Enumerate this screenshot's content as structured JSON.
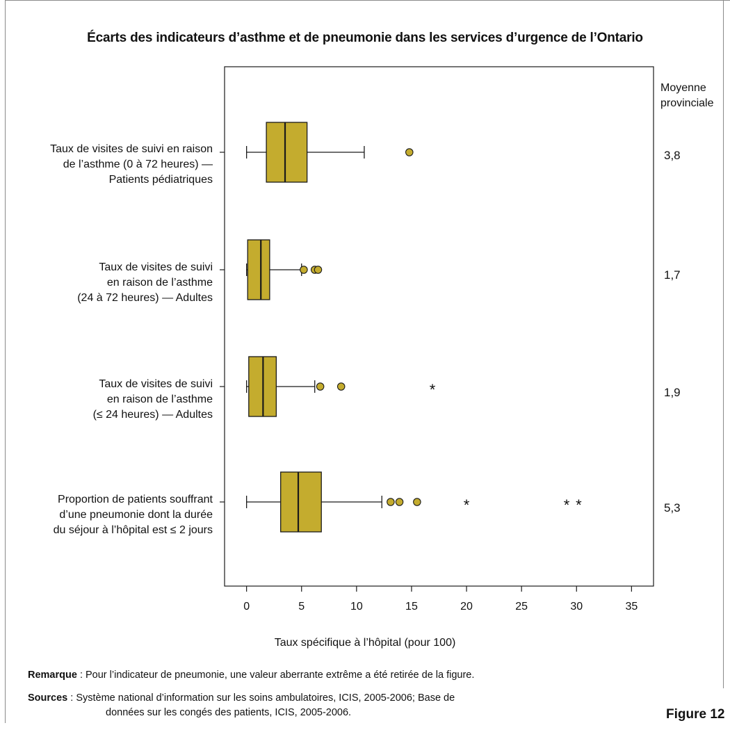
{
  "title": "Écarts des indicateurs d’asthme et de pneumonie dans les services d’urgence de l’Ontario",
  "mean_header": [
    "Moyenne",
    "provinciale"
  ],
  "xlabel": "Taux spécifique à l’hôpital (pour 100)",
  "note": {
    "bold": "Remarque",
    "text": " : Pour l’indicateur de pneumonie, une valeur aberrante extrême a été retirée de la figure."
  },
  "sources": {
    "bold": "Sources",
    "line1": " : Système national d’information sur les soins ambulatoires, ICIS, 2005-2006; Base de",
    "line2": "données sur les congés des patients, ICIS, 2005-2006."
  },
  "figure_label": "Figure 12",
  "colors": {
    "box_fill": "#C4AC2E",
    "outlier_fill": "#C4AC2E",
    "stroke": "#1a1a1a"
  },
  "chart_data": {
    "type": "boxplot",
    "orientation": "horizontal",
    "title": "Écarts des indicateurs d’asthme et de pneumonie dans les services d’urgence de l’Ontario",
    "xlabel": "Taux spécifique à l’hôpital (pour 100)",
    "xlim": [
      -2,
      37
    ],
    "xticks": [
      0,
      5,
      10,
      15,
      20,
      25,
      30,
      35
    ],
    "series": [
      {
        "name_lines": [
          "Taux de visites de suivi en raison",
          "de l’asthme (0 à 72 heures) —",
          "Patients pédiatriques"
        ],
        "min": 0,
        "q1": 1.8,
        "median": 3.5,
        "q3": 5.5,
        "max": 10.7,
        "outliers": [
          14.8
        ],
        "extremes": [],
        "provincial_mean": "3,8"
      },
      {
        "name_lines": [
          "Taux de visites de suivi",
          "en raison de l’asthme",
          "(24 à 72 heures) — Adultes"
        ],
        "min": 0,
        "q1": 0.1,
        "median": 1.3,
        "q3": 2.1,
        "max": 5.0,
        "outliers": [
          5.2,
          6.2,
          6.5
        ],
        "extremes": [],
        "provincial_mean": "1,7"
      },
      {
        "name_lines": [
          "Taux de visites de suivi",
          "en raison de l’asthme",
          "(≤ 24 heures) — Adultes"
        ],
        "min": 0,
        "q1": 0.2,
        "median": 1.5,
        "q3": 2.7,
        "max": 6.2,
        "outliers": [
          6.7,
          8.6
        ],
        "extremes": [
          16.9
        ],
        "provincial_mean": "1,9"
      },
      {
        "name_lines": [
          "Proportion de patients souffrant",
          "d’une pneumonie dont la durée",
          "du séjour à l’hôpital est ≤ 2 jours"
        ],
        "min": 0,
        "q1": 3.1,
        "median": 4.7,
        "q3": 6.8,
        "max": 12.3,
        "outliers": [
          13.1,
          13.9,
          15.5
        ],
        "extremes": [
          20.0,
          29.1,
          30.2
        ],
        "provincial_mean": "5,3"
      }
    ]
  }
}
